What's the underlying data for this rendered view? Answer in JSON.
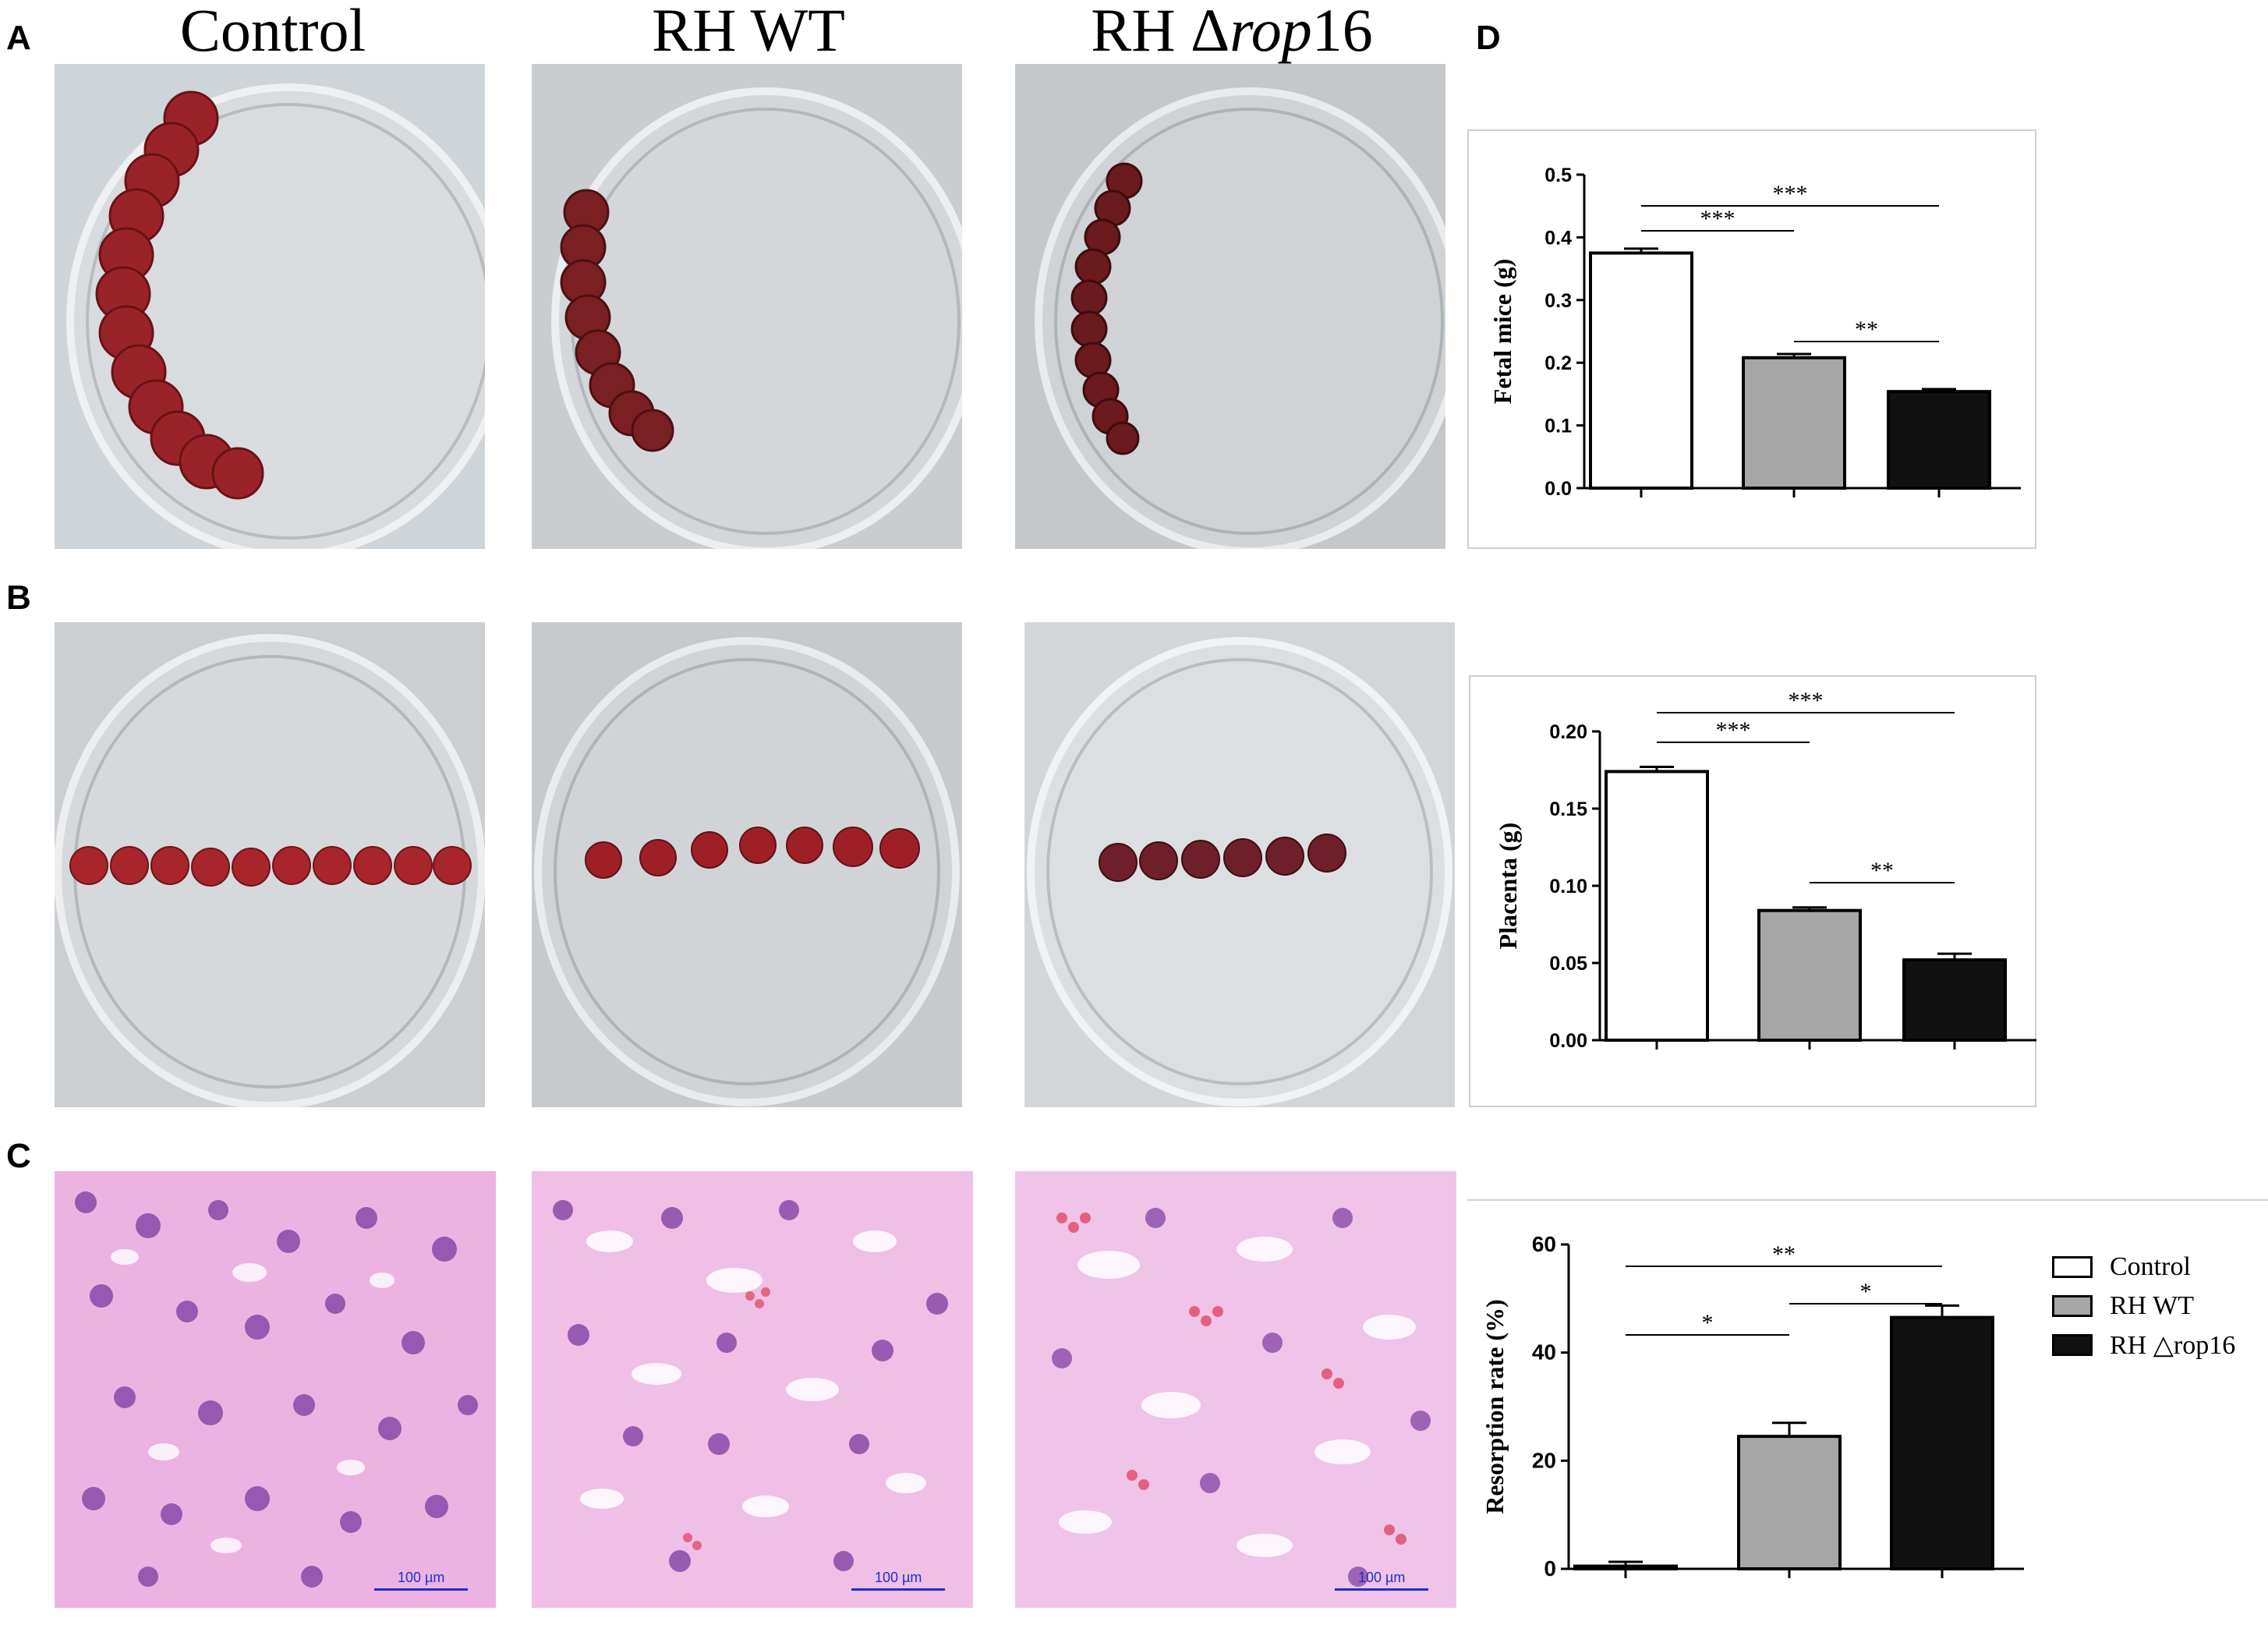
{
  "panel_letters": {
    "a": "A",
    "b": "B",
    "c": "C",
    "d": "D"
  },
  "columns": [
    {
      "label_plain": "RH WT"
    },
    {
      "label_prefix": "RH Δ",
      "label_italic": "rop",
      "label_suffix": "16"
    }
  ],
  "control_label": "Control",
  "scalebars": [
    "100 µm",
    "100 µm",
    "100 µm"
  ],
  "colors": {
    "control": "#ffffff",
    "rh_wt": "#a6a6a6",
    "rh_rop16": "#111111",
    "tissue": "#a8252b",
    "stain": "#c85cb8"
  },
  "legend": [
    {
      "label": "Control"
    },
    {
      "label": "RH WT"
    },
    {
      "label": "RH △rop16"
    }
  ],
  "chart_data": [
    {
      "type": "bar",
      "ylabel": "Fetal mice (g)",
      "categories": [
        "Control",
        "RH WT",
        "RH Δrop16"
      ],
      "values": [
        0.375,
        0.208,
        0.154
      ],
      "errors": [
        0.007,
        0.006,
        0.004
      ],
      "ylim": [
        0,
        0.5
      ],
      "yticks": [
        "0.0",
        "0.1",
        "0.2",
        "0.3",
        "0.4",
        "0.5"
      ],
      "significance": [
        {
          "from": 0,
          "to": 1,
          "label": "***"
        },
        {
          "from": 0,
          "to": 2,
          "label": "***"
        },
        {
          "from": 1,
          "to": 2,
          "label": "**"
        }
      ]
    },
    {
      "type": "bar",
      "ylabel": "Placenta (g)",
      "categories": [
        "Control",
        "RH WT",
        "RH Δrop16"
      ],
      "values": [
        0.174,
        0.084,
        0.052
      ],
      "errors": [
        0.003,
        0.002,
        0.004
      ],
      "ylim": [
        0,
        0.2
      ],
      "yticks": [
        "0.00",
        "0.05",
        "0.10",
        "0.15",
        "0.20"
      ],
      "significance": [
        {
          "from": 0,
          "to": 1,
          "label": "***"
        },
        {
          "from": 0,
          "to": 2,
          "label": "***"
        },
        {
          "from": 1,
          "to": 2,
          "label": "**"
        }
      ]
    },
    {
      "type": "bar",
      "ylabel": "Resorption rate (%)",
      "categories": [
        "Control",
        "RH WT",
        "RH Δrop16"
      ],
      "values": [
        0.5,
        24.5,
        46.5
      ],
      "errors": [
        0.8,
        2.5,
        2.2
      ],
      "ylim": [
        0,
        60
      ],
      "yticks": [
        "0",
        "20",
        "40",
        "60"
      ],
      "significance": [
        {
          "from": 0,
          "to": 1,
          "label": "*"
        },
        {
          "from": 0,
          "to": 2,
          "label": "**"
        },
        {
          "from": 1,
          "to": 2,
          "label": "*"
        }
      ]
    }
  ]
}
